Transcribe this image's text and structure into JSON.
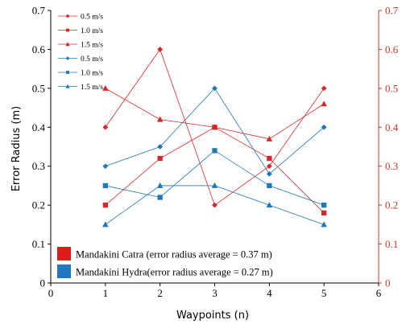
{
  "chart_data": {
    "type": "line",
    "xlabel": "Waypoints (n)",
    "ylabel": "Error Radius (m)",
    "xlim": [
      0,
      6
    ],
    "ylim": [
      0,
      0.7
    ],
    "x_ticks": [
      "0",
      "1",
      "2",
      "3",
      "4",
      "5",
      "6"
    ],
    "y_ticks": [
      "0",
      "0.1",
      "0.2",
      "0.3",
      "0.4",
      "0.5",
      "0.6",
      "0.7"
    ],
    "y2_ticks": [
      "0",
      "0.1",
      "0.2",
      "0.3",
      "0.4",
      "0.5",
      "0.6",
      "0.7"
    ],
    "grid": false,
    "legend_position": "top-left",
    "x": [
      1,
      2,
      3,
      4,
      5
    ],
    "series": [
      {
        "name": "0.5 m/s",
        "values": [
          0.4,
          0.6,
          0.2,
          0.3,
          0.5
        ],
        "color": "#d62728",
        "marker": "diamond"
      },
      {
        "name": "1.0 m/s",
        "values": [
          0.2,
          0.32,
          0.4,
          0.32,
          0.18
        ],
        "color": "#d62728",
        "marker": "square"
      },
      {
        "name": "1.5 m/s",
        "values": [
          0.5,
          0.42,
          0.4,
          0.37,
          0.46
        ],
        "color": "#d62728",
        "marker": "triangle"
      },
      {
        "name": "0.5 m/s",
        "values": [
          0.3,
          0.35,
          0.5,
          0.28,
          0.4
        ],
        "color": "#1f77b4",
        "marker": "diamond"
      },
      {
        "name": "1.0 m/s",
        "values": [
          0.25,
          0.22,
          0.34,
          0.25,
          0.2
        ],
        "color": "#1f77b4",
        "marker": "square"
      },
      {
        "name": "1.5 m/s",
        "values": [
          0.15,
          0.25,
          0.25,
          0.2,
          0.15
        ],
        "color": "#1f77b4",
        "marker": "triangle"
      }
    ],
    "group_legend": [
      {
        "label": "Mandakini Catra (error radius average = 0.37 m)",
        "color": "#e31a1c"
      },
      {
        "label": "Mandakini Hydra(error radius average = 0.27 m)",
        "color": "#1f78c1"
      }
    ],
    "right_axis_color": "#c0392b"
  }
}
